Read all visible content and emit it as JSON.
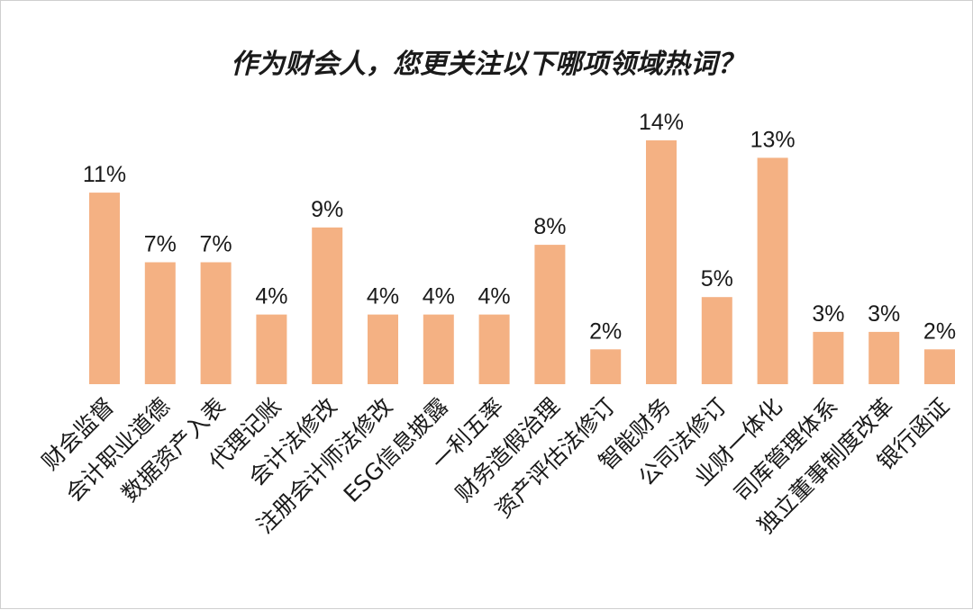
{
  "chart_data": {
    "type": "bar",
    "title": "作为财会人，您更关注以下哪项领域热词？",
    "categories": [
      "财会监督",
      "会计职业道德",
      "数据资产入表",
      "代理记账",
      "会计法修改",
      "注册会计师法修改",
      "ESG信息披露",
      "一利五率",
      "财务造假治理",
      "资产评估法修订",
      "智能财务",
      "公司法修订",
      "业财一体化",
      "司库管理体系",
      "独立董事制度改革",
      "银行函证"
    ],
    "values": [
      11,
      7,
      7,
      4,
      9,
      4,
      4,
      4,
      8,
      2,
      14,
      5,
      13,
      3,
      3,
      2
    ],
    "value_labels": [
      "11%",
      "7%",
      "7%",
      "4%",
      "9%",
      "4%",
      "4%",
      "4%",
      "8%",
      "2%",
      "14%",
      "5%",
      "13%",
      "3%",
      "3%",
      "2%"
    ],
    "unit": "%",
    "ylim": [
      0,
      14
    ],
    "grid": false,
    "legend": "none",
    "bar_color": "#f4b183"
  }
}
